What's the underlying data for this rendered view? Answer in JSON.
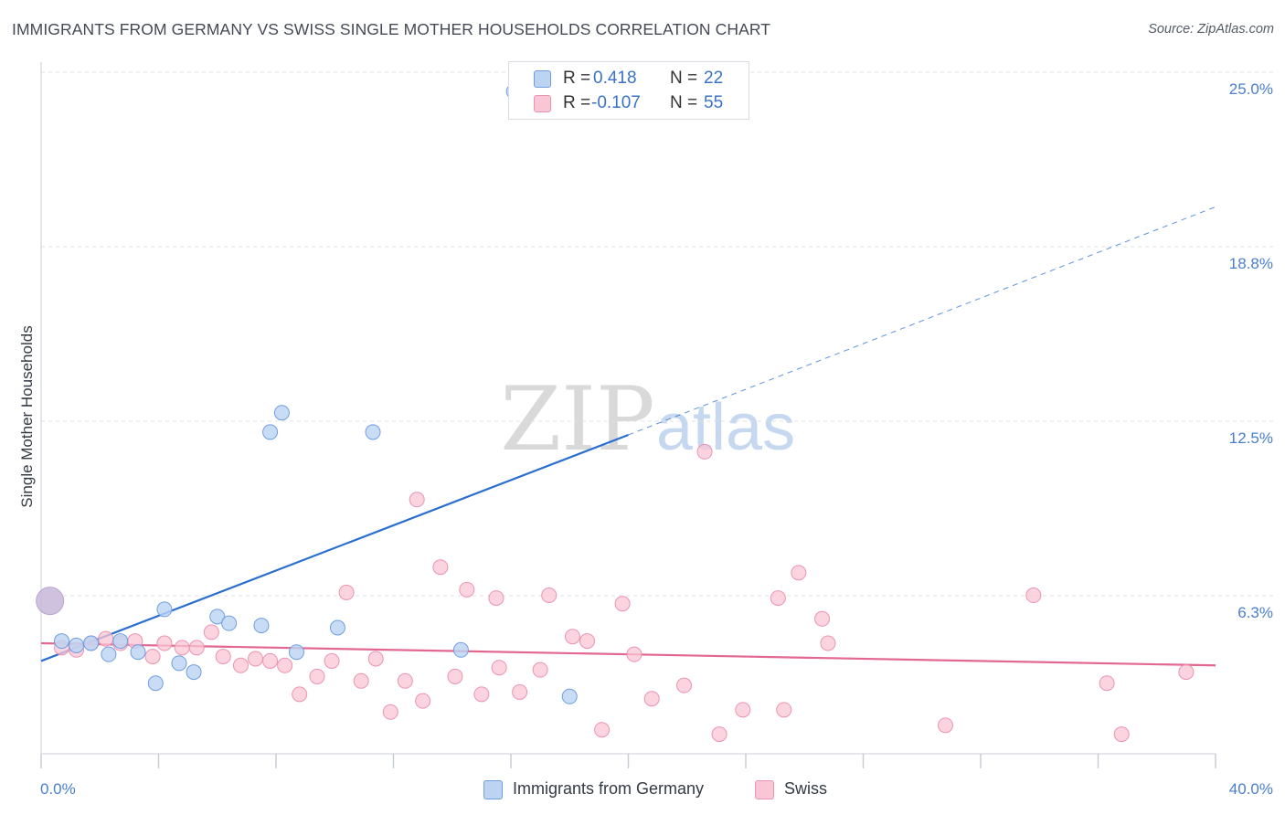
{
  "title": "IMMIGRANTS FROM GERMANY VS SWISS SINGLE MOTHER HOUSEHOLDS CORRELATION CHART",
  "source": "Source: ZipAtlas.com",
  "watermark": {
    "left": "ZIP",
    "right": "atlas"
  },
  "colors": {
    "blue_fill": "#bcd3f2",
    "blue_stroke": "#6f9ee0",
    "blue_line": "#2a6fd0",
    "pink_fill": "#f9c6d6",
    "pink_stroke": "#eb93b0",
    "pink_line": "#e2688f",
    "grid": "#dde1e6",
    "tick_text": "#4a7fd0"
  },
  "legend_top": [
    {
      "r_label": "R =",
      "r_value": "0.418",
      "n_label": "N =",
      "n_value": "22"
    },
    {
      "r_label": "R =",
      "r_value": "-0.107",
      "n_label": "N =",
      "n_value": "55"
    }
  ],
  "legend_bottom": [
    "Immigrants from Germany",
    "Swiss"
  ],
  "chart_data": {
    "type": "scatter",
    "title": "IMMIGRANTS FROM GERMANY VS SWISS SINGLE MOTHER HOUSEHOLDS CORRELATION CHART",
    "xlabel": "",
    "ylabel": "Single Mother Households",
    "xlim": [
      0,
      40
    ],
    "ylim": [
      0,
      25.6
    ],
    "x_tick_labels": [
      "0.0%",
      "40.0%"
    ],
    "y_ticks": [
      6.3,
      12.5,
      18.8,
      25.0
    ],
    "y_tick_labels": [
      "6.3%",
      "12.5%",
      "18.8%",
      "25.0%"
    ],
    "grid": true,
    "legend_position": "top-center",
    "series": [
      {
        "name": "Immigrants from Germany",
        "r": 0.418,
        "n": 22,
        "trend": {
          "x0": 0,
          "y0": 4.1,
          "x1": 20,
          "y1": 12.6,
          "dashed_to_x": 40,
          "dashed_to_y": 20.8
        },
        "points": [
          [
            0.3,
            6.7,
            3.3
          ],
          [
            0.7,
            5.0,
            1
          ],
          [
            1.2,
            4.8,
            1
          ],
          [
            1.7,
            4.9,
            1
          ],
          [
            2.3,
            4.4,
            1
          ],
          [
            2.7,
            5.0,
            1
          ],
          [
            3.3,
            4.5,
            1
          ],
          [
            3.9,
            3.1,
            1
          ],
          [
            4.2,
            6.4,
            1
          ],
          [
            4.7,
            4.0,
            1
          ],
          [
            5.2,
            3.6,
            1
          ],
          [
            6.0,
            6.1,
            1
          ],
          [
            6.4,
            5.8,
            1
          ],
          [
            7.5,
            5.7,
            1
          ],
          [
            7.8,
            12.7,
            1
          ],
          [
            8.2,
            13.4,
            1
          ],
          [
            8.7,
            4.5,
            1
          ],
          [
            10.1,
            5.6,
            1
          ],
          [
            11.3,
            12.7,
            1
          ],
          [
            14.3,
            4.6,
            1
          ],
          [
            16.1,
            24.9,
            1
          ],
          [
            18.0,
            2.5,
            1
          ]
        ]
      },
      {
        "name": "Swiss",
        "r": -0.107,
        "n": 55,
        "trend": {
          "x0": 0,
          "y0": 4.9,
          "x1": 40,
          "y1": 3.9
        },
        "points": [
          [
            0.7,
            4.7
          ],
          [
            1.2,
            4.6
          ],
          [
            1.7,
            4.9
          ],
          [
            2.2,
            5.1
          ],
          [
            2.7,
            4.9
          ],
          [
            3.2,
            5.0
          ],
          [
            3.8,
            4.3
          ],
          [
            4.2,
            4.9
          ],
          [
            4.8,
            4.7
          ],
          [
            5.3,
            4.7
          ],
          [
            5.8,
            5.4
          ],
          [
            6.2,
            4.3
          ],
          [
            6.8,
            3.9
          ],
          [
            7.3,
            4.2
          ],
          [
            7.8,
            4.1
          ],
          [
            8.3,
            3.9
          ],
          [
            8.8,
            2.6
          ],
          [
            9.4,
            3.4
          ],
          [
            9.9,
            4.1
          ],
          [
            10.4,
            7.0
          ],
          [
            10.9,
            3.2
          ],
          [
            11.4,
            4.2
          ],
          [
            11.9,
            1.8
          ],
          [
            12.4,
            3.2
          ],
          [
            12.8,
            10.3
          ],
          [
            13.0,
            2.3
          ],
          [
            13.6,
            7.9
          ],
          [
            14.1,
            3.4
          ],
          [
            14.5,
            7.1
          ],
          [
            15.0,
            2.6
          ],
          [
            15.5,
            6.8
          ],
          [
            15.6,
            3.8
          ],
          [
            16.3,
            2.7
          ],
          [
            17.0,
            3.7
          ],
          [
            17.3,
            6.9
          ],
          [
            18.1,
            5.2
          ],
          [
            18.6,
            5.0
          ],
          [
            19.1,
            1.0
          ],
          [
            19.8,
            6.6
          ],
          [
            20.2,
            4.4
          ],
          [
            20.8,
            2.4
          ],
          [
            21.9,
            3.0
          ],
          [
            22.6,
            12.0
          ],
          [
            23.1,
            0.8
          ],
          [
            23.9,
            1.9
          ],
          [
            25.1,
            6.8
          ],
          [
            25.3,
            1.9
          ],
          [
            25.8,
            7.7
          ],
          [
            26.6,
            6.0
          ],
          [
            26.8,
            4.9
          ],
          [
            30.8,
            1.2
          ],
          [
            33.8,
            6.9
          ],
          [
            36.3,
            3.1
          ],
          [
            36.8,
            0.8
          ],
          [
            39.0,
            3.6
          ]
        ]
      }
    ]
  }
}
